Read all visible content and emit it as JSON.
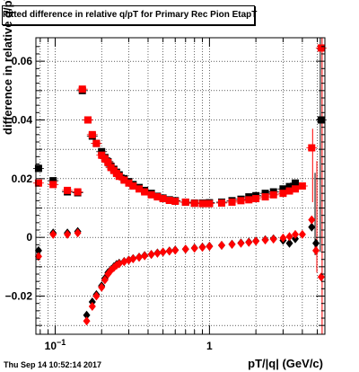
{
  "chart_data": {
    "type": "scatter",
    "title": "Fitted difference in relative q/pT for Primary Rec Pion EtapT",
    "xlabel": "pT/|q| (GeV/c)",
    "ylabel": "difference in relative q/pT",
    "xscale": "log",
    "xlim": [
      0.075,
      5.6
    ],
    "ylim": [
      -0.033,
      0.068
    ],
    "grid": true,
    "x_tick_labels": [
      {
        "label": "10",
        "sup": "−1",
        "value": 0.1
      },
      {
        "label": "1",
        "sup": "",
        "value": 1
      }
    ],
    "y_tick_labels": [
      {
        "label": "−0.02",
        "value": -0.02
      },
      {
        "label": "0",
        "value": 0
      },
      {
        "label": "0.02",
        "value": 0.02
      },
      {
        "label": "0.04",
        "value": 0.04
      },
      {
        "label": "0.06",
        "value": 0.06
      }
    ],
    "series": [
      {
        "color": "#000000",
        "marker": "square",
        "points": [
          [
            0.078,
            0.0235
          ],
          [
            0.097,
            0.0193
          ],
          [
            0.12,
            0.0155
          ],
          [
            0.14,
            0.0152
          ],
          [
            0.15,
            0.05
          ],
          [
            0.163,
            0.04
          ],
          [
            0.174,
            0.0345
          ],
          [
            0.185,
            0.032
          ],
          [
            0.2,
            0.0292
          ],
          [
            0.21,
            0.0272
          ],
          [
            0.22,
            0.0258
          ],
          [
            0.23,
            0.0242
          ],
          [
            0.24,
            0.0232
          ],
          [
            0.25,
            0.0222
          ],
          [
            0.26,
            0.0213
          ],
          [
            0.28,
            0.02
          ],
          [
            0.3,
            0.019
          ],
          [
            0.32,
            0.018
          ],
          [
            0.35,
            0.017
          ],
          [
            0.38,
            0.016
          ],
          [
            0.42,
            0.015
          ],
          [
            0.46,
            0.014
          ],
          [
            0.5,
            0.0134
          ],
          [
            0.55,
            0.0128
          ],
          [
            0.6,
            0.0125
          ],
          [
            0.7,
            0.012
          ],
          [
            0.8,
            0.0117
          ],
          [
            0.9,
            0.0117
          ],
          [
            1.0,
            0.0118
          ],
          [
            1.2,
            0.012
          ],
          [
            1.4,
            0.0125
          ],
          [
            1.6,
            0.013
          ],
          [
            1.8,
            0.0138
          ],
          [
            2.0,
            0.0142
          ],
          [
            2.3,
            0.015
          ],
          [
            2.6,
            0.0155
          ],
          [
            3.0,
            0.0165
          ],
          [
            3.3,
            0.0173
          ],
          [
            3.6,
            0.0185
          ],
          [
            5.3,
            0.04
          ]
        ]
      },
      {
        "color": "#ff0000",
        "marker": "square",
        "points": [
          [
            0.078,
            0.0185
          ],
          [
            0.097,
            0.018
          ],
          [
            0.12,
            0.016
          ],
          [
            0.14,
            0.0155
          ],
          [
            0.15,
            0.0505
          ],
          [
            0.163,
            0.04
          ],
          [
            0.174,
            0.035
          ],
          [
            0.185,
            0.032
          ],
          [
            0.2,
            0.028
          ],
          [
            0.21,
            0.0268
          ],
          [
            0.22,
            0.0255
          ],
          [
            0.23,
            0.0238
          ],
          [
            0.24,
            0.0228
          ],
          [
            0.25,
            0.0218
          ],
          [
            0.26,
            0.0208
          ],
          [
            0.28,
            0.0195
          ],
          [
            0.3,
            0.0185
          ],
          [
            0.32,
            0.0175
          ],
          [
            0.35,
            0.0165
          ],
          [
            0.38,
            0.0155
          ],
          [
            0.42,
            0.0145
          ],
          [
            0.46,
            0.0138
          ],
          [
            0.5,
            0.0132
          ],
          [
            0.55,
            0.0126
          ],
          [
            0.6,
            0.0123
          ],
          [
            0.7,
            0.012
          ],
          [
            0.8,
            0.0116
          ],
          [
            0.9,
            0.0115
          ],
          [
            1.0,
            0.0115
          ],
          [
            1.2,
            0.0117
          ],
          [
            1.4,
            0.012
          ],
          [
            1.6,
            0.0125
          ],
          [
            1.8,
            0.0128
          ],
          [
            2.0,
            0.0132
          ],
          [
            2.3,
            0.0138
          ],
          [
            2.6,
            0.0145
          ],
          [
            3.0,
            0.015
          ],
          [
            3.3,
            0.0158
          ],
          [
            3.6,
            0.0165
          ],
          [
            4.0,
            0.0175
          ],
          [
            4.6,
            0.0305
          ],
          [
            5.3,
            0.0645
          ]
        ]
      },
      {
        "color": "#000000",
        "marker": "diamond",
        "points": [
          [
            0.078,
            -0.0045
          ],
          [
            0.097,
            0.0015
          ],
          [
            0.12,
            0.0015
          ],
          [
            0.14,
            0.002
          ],
          [
            0.16,
            -0.0265
          ],
          [
            0.174,
            -0.022
          ],
          [
            0.185,
            -0.0195
          ],
          [
            0.2,
            -0.0165
          ],
          [
            0.21,
            -0.014
          ],
          [
            0.22,
            -0.012
          ],
          [
            0.23,
            -0.011
          ],
          [
            0.24,
            -0.01
          ],
          [
            0.25,
            -0.0092
          ],
          [
            0.26,
            -0.0088
          ],
          [
            0.28,
            -0.0082
          ],
          [
            0.3,
            -0.0077
          ],
          [
            0.32,
            -0.0072
          ],
          [
            0.35,
            -0.0067
          ],
          [
            0.38,
            -0.0062
          ],
          [
            0.42,
            -0.0058
          ],
          [
            0.46,
            -0.0053
          ],
          [
            0.5,
            -0.005
          ],
          [
            0.55,
            -0.0046
          ],
          [
            0.6,
            -0.0043
          ],
          [
            0.7,
            -0.004
          ],
          [
            0.8,
            -0.0036
          ],
          [
            0.9,
            -0.0033
          ],
          [
            1.0,
            -0.003
          ],
          [
            1.2,
            -0.0027
          ],
          [
            1.4,
            -0.0023
          ],
          [
            1.6,
            -0.0019
          ],
          [
            1.8,
            -0.0016
          ],
          [
            2.0,
            -0.0012
          ],
          [
            2.3,
            -0.0008
          ],
          [
            2.6,
            -0.0005
          ],
          [
            3.0,
            -0.001
          ],
          [
            3.3,
            -0.002
          ],
          [
            3.6,
            -0.0005
          ],
          [
            4.6,
            0.0035
          ],
          [
            4.9,
            -0.002
          ]
        ]
      },
      {
        "color": "#ff0000",
        "marker": "diamond",
        "points": [
          [
            0.078,
            -0.0065
          ],
          [
            0.097,
            0.001
          ],
          [
            0.12,
            0.001
          ],
          [
            0.14,
            0.0015
          ],
          [
            0.16,
            -0.0285
          ],
          [
            0.174,
            -0.0235
          ],
          [
            0.185,
            -0.02
          ],
          [
            0.2,
            -0.017
          ],
          [
            0.21,
            -0.0145
          ],
          [
            0.22,
            -0.0125
          ],
          [
            0.23,
            -0.0112
          ],
          [
            0.24,
            -0.0103
          ],
          [
            0.25,
            -0.0095
          ],
          [
            0.26,
            -0.009
          ],
          [
            0.28,
            -0.0083
          ],
          [
            0.3,
            -0.0078
          ],
          [
            0.32,
            -0.0073
          ],
          [
            0.35,
            -0.0068
          ],
          [
            0.38,
            -0.0063
          ],
          [
            0.42,
            -0.0058
          ],
          [
            0.46,
            -0.0054
          ],
          [
            0.5,
            -0.005
          ],
          [
            0.55,
            -0.0047
          ],
          [
            0.6,
            -0.0044
          ],
          [
            0.7,
            -0.004
          ],
          [
            0.8,
            -0.0037
          ],
          [
            0.9,
            -0.0034
          ],
          [
            1.0,
            -0.0031
          ],
          [
            1.2,
            -0.0027
          ],
          [
            1.4,
            -0.0024
          ],
          [
            1.6,
            -0.002
          ],
          [
            1.8,
            -0.0017
          ],
          [
            2.0,
            -0.0013
          ],
          [
            2.3,
            -0.0009
          ],
          [
            2.6,
            -0.0006
          ],
          [
            3.0,
            -0.0002
          ],
          [
            3.3,
            0.0003
          ],
          [
            3.6,
            0.001
          ],
          [
            4.0,
            0.001
          ],
          [
            4.6,
            0.006
          ],
          [
            4.9,
            -0.0045
          ],
          [
            5.3,
            -0.0135
          ]
        ]
      }
    ],
    "error_bars": [
      {
        "color": "#000000",
        "x": 5.3,
        "low": -0.005,
        "high": 0.068
      },
      {
        "color": "#ff0000",
        "x": 5.3,
        "low": -0.033,
        "high": 0.068
      },
      {
        "color": "#ff0000",
        "x": 4.6,
        "low": 0.012,
        "high": 0.037
      },
      {
        "color": "#ff0000",
        "x": 4.9,
        "low": -0.012,
        "high": 0.026
      },
      {
        "color": "#000000",
        "x": 4.9,
        "low": -0.006,
        "high": 0.022
      }
    ]
  },
  "footer": {
    "timestamp": "Thu Sep 14 10:52:14 2017"
  }
}
